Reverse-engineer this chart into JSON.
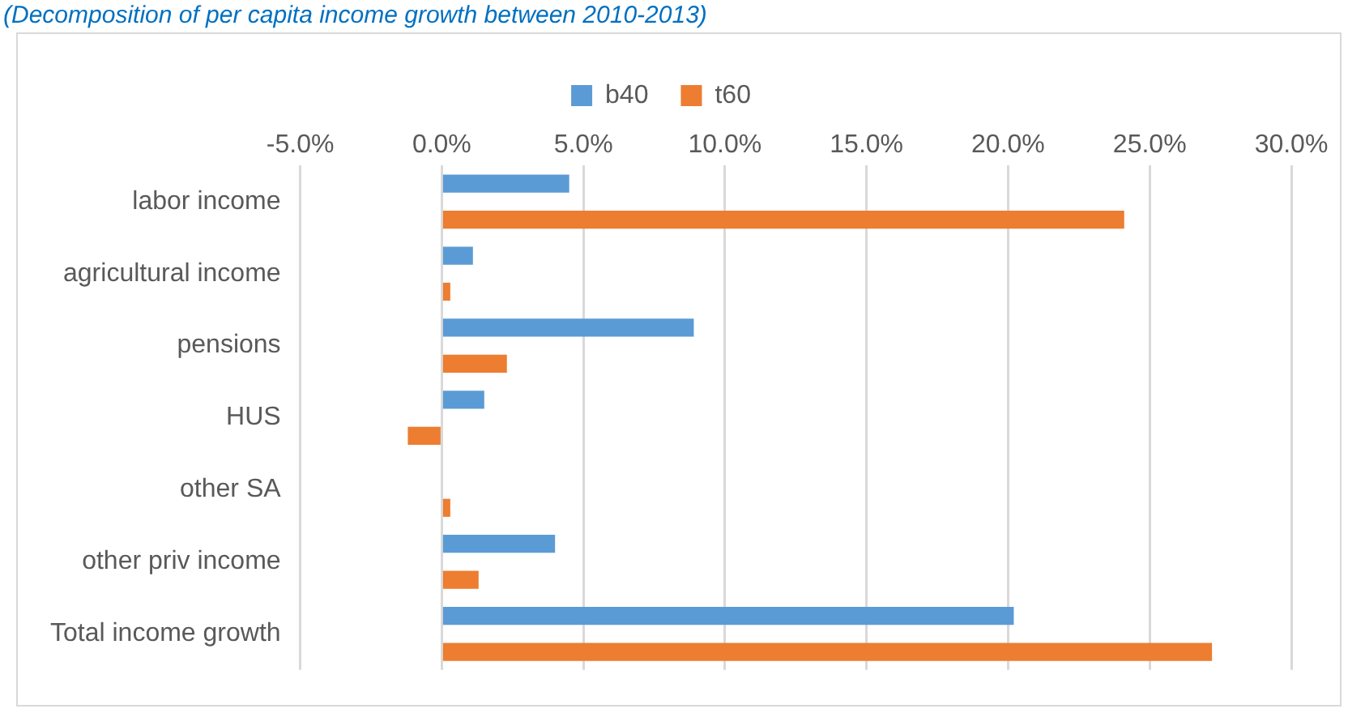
{
  "chart_data": {
    "type": "bar",
    "orientation": "horizontal",
    "title": "(Decomposition of per capita income growth between 2010-2013)",
    "categories": [
      "labor income",
      "agricultural income",
      "pensions",
      "HUS",
      "other SA",
      "other priv income",
      "Total income growth"
    ],
    "series": [
      {
        "name": "b40",
        "color": "#5b9bd5",
        "values": [
          4.5,
          1.1,
          8.9,
          1.5,
          0.0,
          4.0,
          20.2
        ]
      },
      {
        "name": "t60",
        "color": "#ed7d31",
        "values": [
          24.1,
          0.3,
          2.3,
          -1.2,
          0.3,
          1.3,
          27.2
        ]
      }
    ],
    "xlim": [
      -5,
      30
    ],
    "xticks": [
      {
        "value": -5,
        "label": "-5.0%"
      },
      {
        "value": 0,
        "label": "0.0%"
      },
      {
        "value": 5,
        "label": "5.0%"
      },
      {
        "value": 10,
        "label": "10.0%"
      },
      {
        "value": 15,
        "label": "15.0%"
      },
      {
        "value": 20,
        "label": "20.0%"
      },
      {
        "value": 25,
        "label": "25.0%"
      },
      {
        "value": 30,
        "label": "30.0%"
      }
    ],
    "grid": "x",
    "legend": "top"
  }
}
